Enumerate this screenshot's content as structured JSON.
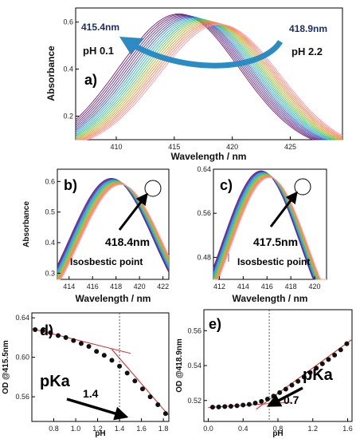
{
  "chart_data": [
    {
      "panel": "a)",
      "type": "line",
      "xlabel": "Wavelength / nm",
      "ylabel": "Absorbance",
      "xlim": [
        406.5,
        429.5
      ],
      "ylim": [
        0.1,
        0.66
      ],
      "xticks": [
        410,
        415,
        420,
        425
      ],
      "yticks": [
        0.2,
        0.4,
        0.6
      ],
      "series_count": 20,
      "peak_start": 415.4,
      "peak_end": 418.9,
      "amp_start": 0.635,
      "amp_end": 0.59,
      "color_start": "#7a1a70",
      "color_end": "#ff9aa2",
      "annotations": {
        "peak_left": "415.4nm",
        "peak_right": "418.9nm",
        "ph_left": "pH 0.1",
        "ph_right": "pH 2.2"
      },
      "arrow_color": "#2b8cc4"
    },
    {
      "panel": "b)",
      "type": "line",
      "xlabel": "Wavelength / nm",
      "ylabel": "Absorbance",
      "xlim": [
        413,
        422.5
      ],
      "ylim": [
        0.28,
        0.64
      ],
      "xticks": [
        414,
        416,
        418,
        420,
        422
      ],
      "yticks": [
        0.3,
        0.4,
        0.5,
        0.6
      ],
      "series_count": 16,
      "isosbestic_x": 418.4,
      "isosbestic_y": 0.595,
      "annotations": {
        "value": "418.4nm",
        "label": "Isosbestic point"
      }
    },
    {
      "panel": "c)",
      "type": "line",
      "xlabel": "Wavelength / nm",
      "ylabel": "",
      "xlim": [
        411.5,
        421
      ],
      "ylim": [
        0.44,
        0.64
      ],
      "xticks": [
        412,
        414,
        416,
        418,
        420
      ],
      "yticks": [
        0.48,
        0.56,
        0.64
      ],
      "series_count": 16,
      "isosbestic_x": 417.5,
      "isosbestic_y": 0.617,
      "annotations": {
        "value": "417.5nm",
        "label": "Isosbestic point"
      }
    },
    {
      "panel": "d)",
      "type": "scatter",
      "xlabel": "pH",
      "ylabel": "OD @415.5nm",
      "xlim": [
        0.6,
        1.85
      ],
      "ylim": [
        0.535,
        0.645
      ],
      "xticks": [
        0.8,
        1.0,
        1.2,
        1.4,
        1.6,
        1.8
      ],
      "yticks": [
        0.56,
        0.6,
        0.64
      ],
      "x": [
        0.63,
        0.7,
        0.77,
        0.84,
        0.91,
        0.98,
        1.05,
        1.12,
        1.19,
        1.26,
        1.33,
        1.4,
        1.47,
        1.54,
        1.61,
        1.68,
        1.75,
        1.82
      ],
      "y": [
        0.628,
        0.627,
        0.625,
        0.622,
        0.62,
        0.617,
        0.614,
        0.611,
        0.606,
        0.602,
        0.597,
        0.591,
        0.584,
        0.576,
        0.568,
        0.56,
        0.552,
        0.543
      ],
      "fit1": [
        [
          0.6,
          0.629
        ],
        [
          1.5,
          0.604
        ]
      ],
      "fit2": [
        [
          1.33,
          0.608
        ],
        [
          1.85,
          0.541
        ]
      ],
      "pka": 1.4,
      "annotations": {
        "label": "pKa",
        "value": "1.4"
      }
    },
    {
      "panel": "e)",
      "type": "scatter",
      "xlabel": "pH",
      "ylabel": "OD @418.9nm",
      "xlim": [
        -0.05,
        1.65
      ],
      "ylim": [
        0.508,
        0.572
      ],
      "xticks": [
        0.0,
        0.4,
        0.8,
        1.2,
        1.6
      ],
      "yticks": [
        0.52,
        0.54,
        0.56
      ],
      "x": [
        0.05,
        0.12,
        0.19,
        0.26,
        0.33,
        0.4,
        0.47,
        0.54,
        0.61,
        0.68,
        0.75,
        0.82,
        0.89,
        0.96,
        1.03,
        1.1,
        1.17,
        1.24,
        1.31,
        1.38,
        1.45,
        1.52,
        1.59
      ],
      "y": [
        0.5162,
        0.5163,
        0.5165,
        0.5167,
        0.517,
        0.5174,
        0.5178,
        0.5185,
        0.5195,
        0.5208,
        0.5225,
        0.5245,
        0.5265,
        0.5288,
        0.531,
        0.5335,
        0.536,
        0.5385,
        0.541,
        0.5435,
        0.546,
        0.549,
        0.5525
      ],
      "fit1": [
        [
          0.0,
          0.516
        ],
        [
          0.95,
          0.519
        ]
      ],
      "fit2": [
        [
          0.55,
          0.515
        ],
        [
          1.65,
          0.555
        ]
      ],
      "pka": 0.7,
      "annotations": {
        "label": "pKa",
        "value": "0.7"
      }
    }
  ]
}
